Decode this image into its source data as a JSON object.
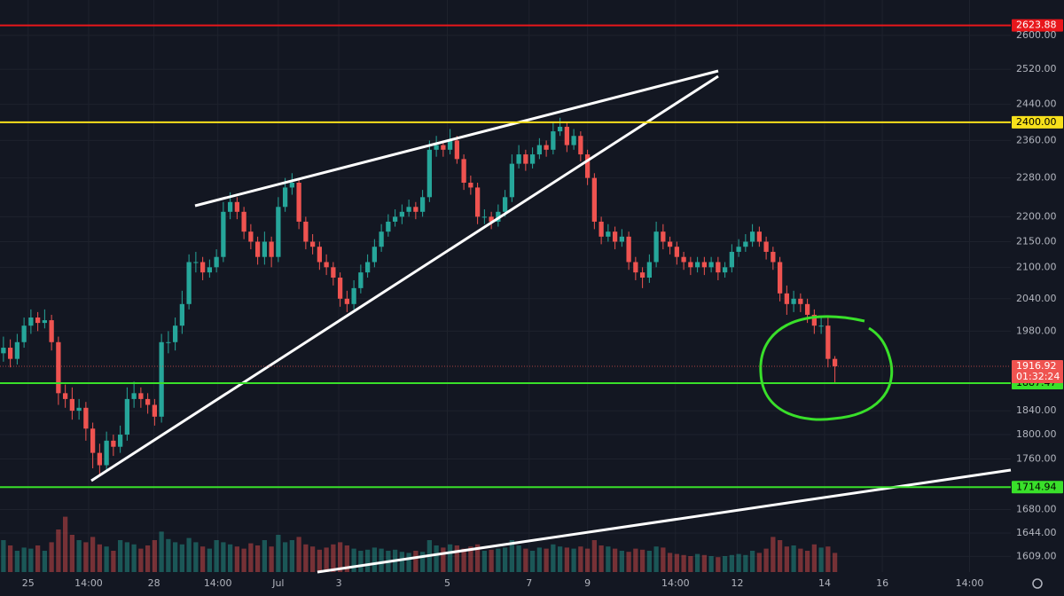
{
  "chart_data": {
    "type": "candlestick",
    "up_color": "#26a69a",
    "down_color": "#ef5350",
    "log_scale": true,
    "grid": true,
    "xlim": [
      -0.5,
      146.6
    ],
    "ylim": [
      1586,
      2686
    ],
    "vlim": [
      0,
      1000
    ],
    "xticks": [
      {
        "value": 3.6,
        "label": "25"
      },
      {
        "value": 12.4,
        "label": "14:00"
      },
      {
        "value": 21.9,
        "label": "28"
      },
      {
        "value": 31.2,
        "label": "14:00"
      },
      {
        "value": 40,
        "label": "Jul"
      },
      {
        "value": 48.8,
        "label": "3"
      },
      {
        "value": 64.6,
        "label": "5"
      },
      {
        "value": 76.5,
        "label": "7"
      },
      {
        "value": 85,
        "label": "9"
      },
      {
        "value": 97.8,
        "label": "14:00"
      },
      {
        "value": 106.8,
        "label": "12"
      },
      {
        "value": 119.5,
        "label": "14"
      },
      {
        "value": 127.9,
        "label": "16"
      },
      {
        "value": 140.6,
        "label": "14:00"
      }
    ],
    "yticks": [
      {
        "value": 1609,
        "label": "1609.00"
      },
      {
        "value": 1644,
        "label": "1644.00"
      },
      {
        "value": 1680,
        "label": "1680.00"
      },
      {
        "value": 1760,
        "label": "1760.00"
      },
      {
        "value": 1800,
        "label": "1800.00"
      },
      {
        "value": 1840,
        "label": "1840.00"
      },
      {
        "value": 1980,
        "label": "1980.00"
      },
      {
        "value": 2040,
        "label": "2040.00"
      },
      {
        "value": 2100,
        "label": "2100.00"
      },
      {
        "value": 2150,
        "label": "2150.00"
      },
      {
        "value": 2200,
        "label": "2200.00"
      },
      {
        "value": 2280,
        "label": "2280.00"
      },
      {
        "value": 2360,
        "label": "2360.00"
      },
      {
        "value": 2440,
        "label": "2440.00"
      },
      {
        "value": 2520,
        "label": "2520.00"
      },
      {
        "value": 2600,
        "label": "2600.00"
      }
    ],
    "levels": [
      {
        "value": 2623.88,
        "color": "#e8171b",
        "text_color": "#ffffff"
      },
      {
        "value": 2400,
        "label": "2400.00",
        "color": "#f7e01b",
        "text_color": "#000000"
      },
      {
        "value": 1887.47,
        "color": "#39e02a",
        "text_color": "#000000"
      },
      {
        "value": 1714.94,
        "color": "#39e02a",
        "text_color": "#000000"
      }
    ],
    "countdown": "01:32:24",
    "open": [
      1940,
      1950,
      1930,
      1960,
      1990,
      2005,
      1995,
      2000,
      1960,
      1870,
      1860,
      1840,
      1845,
      1810,
      1770,
      1750,
      1790,
      1780,
      1800,
      1860,
      1870,
      1860,
      1850,
      1830,
      1960,
      1960,
      1990,
      2030,
      2110,
      2110,
      2090,
      2100,
      2120,
      2210,
      2230,
      2210,
      2170,
      2150,
      2120,
      2150,
      2120,
      2220,
      2260,
      2270,
      2190,
      2150,
      2140,
      2110,
      2100,
      2080,
      2040,
      2030,
      2060,
      2090,
      2110,
      2140,
      2170,
      2190,
      2200,
      2210,
      2220,
      2210,
      2240,
      2340,
      2350,
      2340,
      2360,
      2320,
      2270,
      2260,
      2200,
      2200,
      2190,
      2210,
      2240,
      2310,
      2330,
      2310,
      2330,
      2350,
      2340,
      2380,
      2390,
      2350,
      2370,
      2330,
      2280,
      2190,
      2160,
      2170,
      2150,
      2160,
      2110,
      2090,
      2080,
      2110,
      2170,
      2150,
      2140,
      2120,
      2110,
      2100,
      2110,
      2100,
      2110,
      2090,
      2100,
      2130,
      2140,
      2150,
      2170,
      2150,
      2130,
      2110,
      2050,
      2030,
      2040,
      2030,
      2010,
      1990,
      1990,
      1930
    ],
    "high": [
      1970,
      1965,
      1975,
      2005,
      2020,
      2015,
      2020,
      2010,
      1970,
      1885,
      1880,
      1860,
      1855,
      1820,
      1785,
      1805,
      1800,
      1815,
      1880,
      1890,
      1880,
      1870,
      1860,
      1975,
      1980,
      2005,
      2055,
      2125,
      2130,
      2120,
      2115,
      2135,
      2230,
      2250,
      2240,
      2220,
      2185,
      2160,
      2170,
      2160,
      2240,
      2280,
      2290,
      2280,
      2200,
      2165,
      2150,
      2125,
      2110,
      2090,
      2055,
      2075,
      2105,
      2125,
      2155,
      2185,
      2205,
      2215,
      2225,
      2235,
      2230,
      2255,
      2360,
      2370,
      2360,
      2385,
      2370,
      2330,
      2285,
      2270,
      2215,
      2210,
      2225,
      2255,
      2330,
      2350,
      2340,
      2345,
      2365,
      2360,
      2400,
      2410,
      2400,
      2385,
      2380,
      2340,
      2290,
      2200,
      2185,
      2180,
      2175,
      2170,
      2120,
      2100,
      2125,
      2190,
      2185,
      2160,
      2150,
      2130,
      2120,
      2120,
      2120,
      2120,
      2120,
      2110,
      2145,
      2155,
      2165,
      2185,
      2180,
      2160,
      2140,
      2120,
      2065,
      2055,
      2050,
      2040,
      2020,
      2005,
      2005,
      1935
    ],
    "low": [
      1925,
      1915,
      1920,
      1950,
      1975,
      1980,
      1985,
      1945,
      1850,
      1845,
      1825,
      1825,
      1790,
      1745,
      1735,
      1740,
      1765,
      1770,
      1790,
      1845,
      1845,
      1835,
      1815,
      1820,
      1940,
      1945,
      1975,
      2020,
      2090,
      2075,
      2080,
      2090,
      2110,
      2195,
      2195,
      2155,
      2135,
      2105,
      2105,
      2100,
      2110,
      2210,
      2245,
      2175,
      2135,
      2125,
      2095,
      2085,
      2065,
      2025,
      2015,
      2020,
      2050,
      2080,
      2100,
      2130,
      2160,
      2180,
      2185,
      2200,
      2195,
      2200,
      2230,
      2325,
      2325,
      2330,
      2310,
      2255,
      2245,
      2185,
      2185,
      2175,
      2180,
      2200,
      2230,
      2300,
      2295,
      2300,
      2320,
      2325,
      2330,
      2370,
      2335,
      2340,
      2315,
      2265,
      2175,
      2145,
      2150,
      2135,
      2140,
      2095,
      2075,
      2060,
      2070,
      2100,
      2135,
      2125,
      2105,
      2095,
      2085,
      2090,
      2085,
      2090,
      2075,
      2080,
      2090,
      2120,
      2130,
      2140,
      2140,
      2115,
      2095,
      2035,
      2010,
      2015,
      2015,
      1995,
      1975,
      1975,
      1915,
      1889
    ],
    "close": [
      1950,
      1930,
      1960,
      1990,
      2005,
      1995,
      2000,
      1960,
      1870,
      1860,
      1840,
      1845,
      1810,
      1770,
      1750,
      1790,
      1780,
      1800,
      1860,
      1870,
      1860,
      1850,
      1830,
      1960,
      1960,
      1990,
      2030,
      2110,
      2110,
      2090,
      2100,
      2120,
      2210,
      2230,
      2210,
      2170,
      2150,
      2120,
      2150,
      2120,
      2220,
      2260,
      2270,
      2190,
      2150,
      2140,
      2110,
      2100,
      2080,
      2040,
      2030,
      2060,
      2090,
      2110,
      2140,
      2170,
      2190,
      2200,
      2210,
      2220,
      2210,
      2240,
      2340,
      2350,
      2340,
      2360,
      2320,
      2270,
      2260,
      2200,
      2200,
      2190,
      2210,
      2240,
      2310,
      2330,
      2310,
      2330,
      2350,
      2340,
      2380,
      2390,
      2350,
      2370,
      2330,
      2280,
      2190,
      2160,
      2170,
      2150,
      2160,
      2110,
      2090,
      2080,
      2110,
      2170,
      2150,
      2140,
      2120,
      2110,
      2100,
      2110,
      2100,
      2110,
      2090,
      2100,
      2130,
      2140,
      2150,
      2170,
      2150,
      2130,
      2110,
      2050,
      2030,
      2040,
      2030,
      2010,
      1990,
      1990,
      1930,
      1916.92
    ],
    "volume": [
      300,
      250,
      200,
      230,
      220,
      250,
      200,
      280,
      400,
      520,
      350,
      300,
      280,
      330,
      260,
      240,
      200,
      300,
      280,
      260,
      220,
      250,
      300,
      380,
      310,
      280,
      260,
      320,
      280,
      240,
      220,
      300,
      280,
      260,
      240,
      220,
      270,
      250,
      300,
      240,
      350,
      280,
      300,
      330,
      260,
      240,
      210,
      230,
      260,
      280,
      250,
      220,
      200,
      210,
      230,
      220,
      200,
      210,
      190,
      180,
      200,
      190,
      300,
      250,
      230,
      260,
      250,
      220,
      240,
      260,
      200,
      210,
      220,
      230,
      300,
      250,
      220,
      200,
      230,
      220,
      260,
      240,
      230,
      220,
      240,
      220,
      300,
      250,
      240,
      220,
      200,
      190,
      220,
      210,
      200,
      240,
      230,
      180,
      170,
      160,
      150,
      170,
      160,
      150,
      140,
      150,
      160,
      170,
      160,
      200,
      180,
      220,
      330,
      300,
      240,
      250,
      220,
      200,
      260,
      230,
      240,
      180
    ]
  }
}
